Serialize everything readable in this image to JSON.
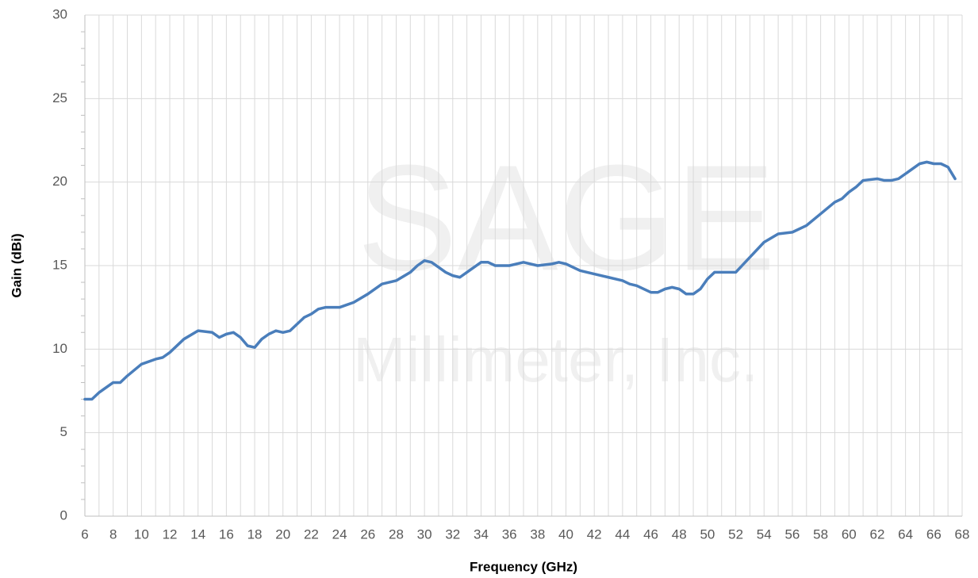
{
  "chart_data": {
    "type": "line",
    "watermark": {
      "name": "SAGE",
      "subtitle": "Millimeter, Inc."
    },
    "xlabel": "Frequency (GHz)",
    "ylabel": "Gain (dBi)",
    "xlim": [
      6,
      68
    ],
    "xticks": [
      6,
      8,
      10,
      12,
      14,
      16,
      18,
      20,
      22,
      24,
      26,
      28,
      30,
      32,
      34,
      36,
      38,
      40,
      42,
      44,
      46,
      48,
      50,
      52,
      54,
      56,
      58,
      60,
      62,
      64,
      66,
      68
    ],
    "ylim": [
      0,
      30
    ],
    "yticks": [
      0,
      5,
      10,
      15,
      20,
      25,
      30
    ],
    "grid": true,
    "series": [
      {
        "name": "Gain",
        "color": "#4a7ebb",
        "x": [
          6,
          6.5,
          7,
          8,
          8.5,
          9,
          10,
          11,
          11.5,
          12,
          13,
          14,
          15,
          15.5,
          16,
          16.5,
          17,
          17.5,
          18,
          18.5,
          19,
          19.5,
          20,
          20.5,
          21,
          21.5,
          22,
          22.5,
          23,
          24,
          25,
          26,
          27,
          27.5,
          28,
          29,
          29.5,
          30,
          30.5,
          31,
          31.5,
          32,
          32.5,
          33,
          34,
          34.5,
          35,
          36,
          37,
          38,
          39,
          39.5,
          40,
          41,
          42,
          43,
          44,
          44.5,
          45,
          46,
          46.5,
          47,
          47.5,
          48,
          48.5,
          49,
          49.5,
          50,
          50.5,
          51,
          52,
          53,
          54,
          55,
          56,
          57,
          58,
          59,
          59.5,
          60,
          60.5,
          61,
          62,
          62.5,
          63,
          63.5,
          64,
          65,
          65.5,
          66,
          66.5,
          67,
          67.5
        ],
        "values": [
          7.0,
          7.0,
          7.4,
          8.0,
          8.0,
          8.4,
          9.1,
          9.4,
          9.5,
          9.8,
          10.6,
          11.1,
          11.0,
          10.7,
          10.9,
          11.0,
          10.7,
          10.2,
          10.1,
          10.6,
          10.9,
          11.1,
          11.0,
          11.1,
          11.5,
          11.9,
          12.1,
          12.4,
          12.5,
          12.5,
          12.8,
          13.3,
          13.9,
          14.0,
          14.1,
          14.6,
          15.0,
          15.3,
          15.2,
          14.9,
          14.6,
          14.4,
          14.3,
          14.6,
          15.2,
          15.2,
          15.0,
          15.0,
          15.2,
          15.0,
          15.1,
          15.2,
          15.1,
          14.7,
          14.5,
          14.3,
          14.1,
          13.9,
          13.8,
          13.4,
          13.4,
          13.6,
          13.7,
          13.6,
          13.3,
          13.3,
          13.6,
          14.2,
          14.6,
          14.6,
          14.6,
          15.5,
          16.4,
          16.9,
          17.0,
          17.4,
          18.1,
          18.8,
          19.0,
          19.4,
          19.7,
          20.1,
          20.2,
          20.1,
          20.1,
          20.2,
          20.5,
          21.1,
          21.2,
          21.1,
          21.1,
          20.9,
          20.2
        ]
      }
    ]
  }
}
